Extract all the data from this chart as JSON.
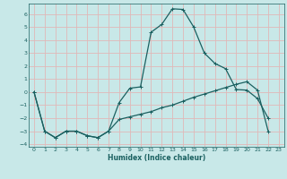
{
  "xlabel": "Humidex (Indice chaleur)",
  "xlim": [
    -0.5,
    23.5
  ],
  "ylim": [
    -4.2,
    6.8
  ],
  "yticks": [
    -4,
    -3,
    -2,
    -1,
    0,
    1,
    2,
    3,
    4,
    5,
    6
  ],
  "xticks": [
    0,
    1,
    2,
    3,
    4,
    5,
    6,
    7,
    8,
    9,
    10,
    11,
    12,
    13,
    14,
    15,
    16,
    17,
    18,
    19,
    20,
    21,
    22,
    23
  ],
  "background_color": "#c8e8e8",
  "grid_color": "#e0b8b8",
  "line_color": "#1a6060",
  "line1_x": [
    0,
    1,
    2,
    3,
    4,
    5,
    6,
    7,
    8,
    9,
    10,
    11,
    12,
    13,
    14,
    15,
    16,
    17,
    18,
    19,
    20,
    21,
    22
  ],
  "line1_y": [
    0.0,
    -3.0,
    -3.5,
    -3.0,
    -3.0,
    -3.35,
    -3.5,
    -3.0,
    -0.8,
    0.3,
    0.4,
    4.6,
    5.2,
    6.4,
    6.35,
    5.0,
    3.0,
    2.2,
    1.8,
    0.2,
    0.15,
    -0.5,
    -2.0
  ],
  "line2_x": [
    0,
    1,
    2,
    3,
    4,
    5,
    6,
    7,
    8,
    9,
    10,
    11,
    12,
    13,
    14,
    15,
    16,
    17,
    18,
    19,
    20,
    21,
    22
  ],
  "line2_y": [
    0.0,
    -3.0,
    -3.5,
    -3.0,
    -3.0,
    -3.35,
    -3.5,
    -3.0,
    -2.1,
    -1.9,
    -1.7,
    -1.5,
    -1.2,
    -1.0,
    -0.7,
    -0.4,
    -0.15,
    0.1,
    0.35,
    0.6,
    0.8,
    0.15,
    -3.0
  ]
}
